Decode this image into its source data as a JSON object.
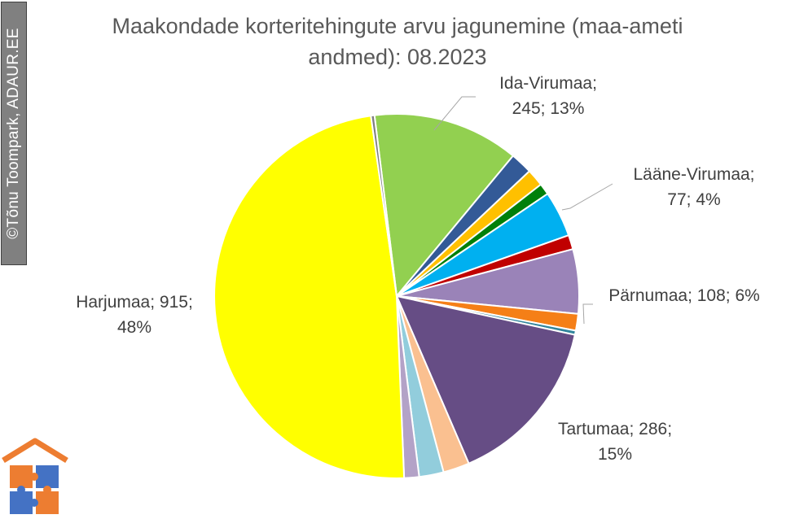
{
  "watermark": {
    "text": "©Tõnu Toompark, ADAUR.EE"
  },
  "logo": {
    "icon": "house-puzzle-logo-icon",
    "colors": [
      "#ED7D31",
      "#4472C4"
    ]
  },
  "chart_data": {
    "type": "pie",
    "title": "Maakondade korteritehingute arvu jagunemine (maa-ameti andmed): 08.2023",
    "title_lines": [
      "Maakondade korteritehingute arvu jagunemine (maa-ameti",
      "andmed): 08.2023"
    ],
    "start_angle_deg": -7,
    "direction": "clockwise",
    "slices": [
      {
        "value": 245,
        "percent": 13,
        "color": "#92D050"
      },
      {
        "value": 37,
        "percent": 2,
        "color": "#335A97"
      },
      {
        "value": 29,
        "percent": 2,
        "color": "#FFC000"
      },
      {
        "value": 19,
        "percent": 1,
        "color": "#00800A"
      },
      {
        "value": 77,
        "percent": 4,
        "color": "#00B0F0"
      },
      {
        "value": 24,
        "percent": 1,
        "color": "#C00000"
      },
      {
        "value": 108,
        "percent": 6,
        "color": "#9A83B8"
      },
      {
        "value": 28,
        "percent": 1,
        "color": "#F57F17"
      },
      {
        "value": 7,
        "percent": 0,
        "color": "#31859C"
      },
      {
        "value": 286,
        "percent": 15,
        "color": "#664D85"
      },
      {
        "value": 44,
        "percent": 2,
        "color": "#FAC090"
      },
      {
        "value": 41,
        "percent": 2,
        "color": "#92CDDC"
      },
      {
        "value": 25,
        "percent": 1,
        "color": "#B3A2C7"
      },
      {
        "value": 915,
        "percent": 48,
        "color": "#FFFF00"
      },
      {
        "value": 6,
        "percent": 0,
        "color": "#7F7F7F"
      }
    ],
    "labels": [
      {
        "lines": [
          "Ida-Virumaa;",
          "245; 13%"
        ]
      },
      {
        "lines": [
          "Lääne-Virumaa;",
          "77; 4%"
        ]
      },
      {
        "lines": [
          "Pärnumaa; 108; 6%"
        ]
      },
      {
        "lines": [
          "Tartumaa; 286;",
          "15%"
        ]
      },
      {
        "lines": [
          "Harjumaa; 915;",
          "48%"
        ]
      }
    ]
  }
}
